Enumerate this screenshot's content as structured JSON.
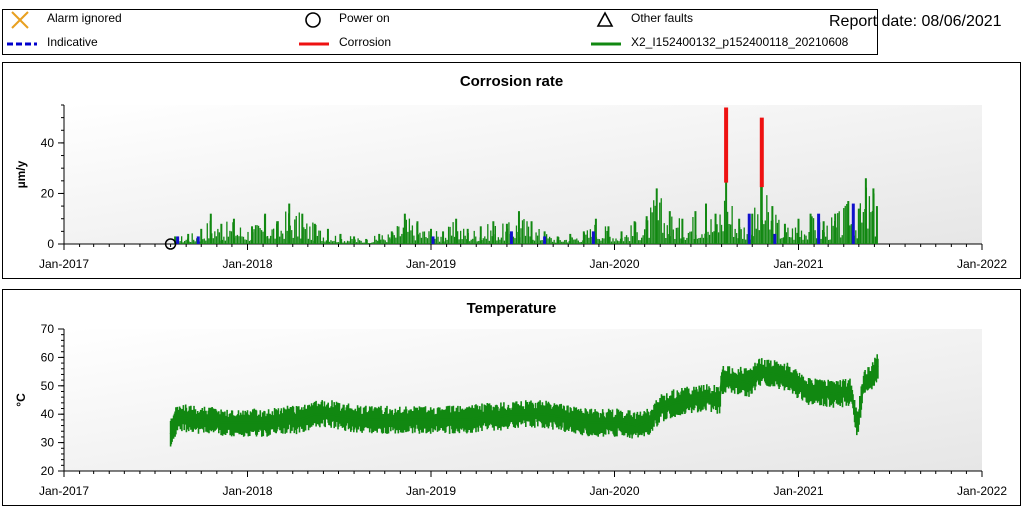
{
  "legend": {
    "items": [
      {
        "id": "alarm",
        "label": "Alarm ignored",
        "marker": "x-cross",
        "color": "#e8a020"
      },
      {
        "id": "power",
        "label": "Power on",
        "marker": "circle",
        "color": "#000000"
      },
      {
        "id": "faults",
        "label": "Other faults",
        "marker": "triangle",
        "color": "#000000"
      },
      {
        "id": "indicative",
        "label": "Indicative",
        "marker": "dashed-line",
        "color": "#0000cc"
      },
      {
        "id": "corrosion",
        "label": "Corrosion",
        "marker": "line",
        "color": "#ee1111"
      },
      {
        "id": "series",
        "label": "X2_I152400132_p152400118_20210608",
        "marker": "line",
        "color": "#118811"
      }
    ]
  },
  "report": {
    "date_label": "Report date: 08/06/2021"
  },
  "colors": {
    "green": "#118811",
    "blue": "#1111cc",
    "red": "#ee1111",
    "plot_bg": "#e6e6e6"
  },
  "chart_data": [
    {
      "type": "bar",
      "title": "Corrosion rate",
      "ylabel": "µm/y",
      "xlabel": "",
      "ylim": [
        0,
        55
      ],
      "yticks": [
        0,
        20,
        40
      ],
      "xlim": [
        "2017-01-01",
        "2022-01-01"
      ],
      "xticks": [
        "Jan-2017",
        "Jan-2018",
        "Jan-2019",
        "Jan-2020",
        "Jan-2021",
        "Jan-2022"
      ],
      "data_start": "2017-08-01",
      "data_end": "2021-06-08",
      "series": [
        {
          "name": "X2_I152400132_p152400118_20210608",
          "color": "#118811",
          "points": [
            [
              "2017-08-10",
              3
            ],
            [
              "2017-09-05",
              4
            ],
            [
              "2017-10-01",
              6
            ],
            [
              "2017-10-20",
              12
            ],
            [
              "2017-11-10",
              8
            ],
            [
              "2017-12-05",
              10
            ],
            [
              "2018-01-10",
              7
            ],
            [
              "2018-02-05",
              12
            ],
            [
              "2018-03-01",
              9
            ],
            [
              "2018-03-25",
              16
            ],
            [
              "2018-04-20",
              12
            ],
            [
              "2018-05-15",
              8
            ],
            [
              "2018-06-10",
              6
            ],
            [
              "2018-07-05",
              4
            ],
            [
              "2018-08-01",
              3
            ],
            [
              "2018-08-25",
              2
            ],
            [
              "2018-09-20",
              4
            ],
            [
              "2018-10-15",
              5
            ],
            [
              "2018-11-10",
              12
            ],
            [
              "2018-12-05",
              9
            ],
            [
              "2019-01-01",
              6
            ],
            [
              "2019-01-25",
              5
            ],
            [
              "2019-02-20",
              10
            ],
            [
              "2019-03-15",
              6
            ],
            [
              "2019-04-10",
              7
            ],
            [
              "2019-05-05",
              9
            ],
            [
              "2019-06-01",
              8
            ],
            [
              "2019-06-25",
              13
            ],
            [
              "2019-07-20",
              9
            ],
            [
              "2019-08-15",
              5
            ],
            [
              "2019-09-10",
              3
            ],
            [
              "2019-10-05",
              4
            ],
            [
              "2019-11-01",
              5
            ],
            [
              "2019-11-25",
              10
            ],
            [
              "2019-12-20",
              7
            ],
            [
              "2020-01-15",
              5
            ],
            [
              "2020-02-10",
              9
            ],
            [
              "2020-03-05",
              11
            ],
            [
              "2020-03-25",
              22
            ],
            [
              "2020-04-20",
              13
            ],
            [
              "2020-05-15",
              10
            ],
            [
              "2020-06-10",
              13
            ],
            [
              "2020-07-01",
              16
            ],
            [
              "2020-07-20",
              12
            ],
            [
              "2020-08-10",
              28
            ],
            [
              "2020-09-05",
              10
            ],
            [
              "2020-10-01",
              12
            ],
            [
              "2020-10-20",
              25
            ],
            [
              "2020-11-10",
              15
            ],
            [
              "2020-12-05",
              8
            ],
            [
              "2021-01-01",
              10
            ],
            [
              "2021-01-25",
              12
            ],
            [
              "2021-02-20",
              9
            ],
            [
              "2021-03-15",
              12
            ],
            [
              "2021-04-10",
              17
            ],
            [
              "2021-05-01",
              14
            ],
            [
              "2021-05-15",
              26
            ],
            [
              "2021-05-30",
              22
            ],
            [
              "2021-06-06",
              15
            ]
          ]
        },
        {
          "name": "Indicative",
          "color": "#1111cc",
          "points": [
            [
              "2017-08-15",
              3
            ],
            [
              "2017-09-25",
              3
            ],
            [
              "2019-01-05",
              3
            ],
            [
              "2019-06-10",
              5
            ],
            [
              "2019-08-15",
              3
            ],
            [
              "2019-11-20",
              5
            ],
            [
              "2020-09-25",
              12
            ],
            [
              "2020-11-15",
              4
            ],
            [
              "2021-02-10",
              12
            ],
            [
              "2021-04-20",
              16
            ]
          ]
        },
        {
          "name": "Corrosion",
          "color": "#ee1111",
          "points": [
            [
              "2020-08-10",
              54
            ],
            [
              "2020-10-20",
              50
            ]
          ]
        }
      ],
      "markers": [
        {
          "type": "power_on",
          "date": "2017-08-01",
          "value": 0
        }
      ]
    },
    {
      "type": "line",
      "title": "Temperature",
      "ylabel": "°C",
      "xlabel": "",
      "ylim": [
        20,
        70
      ],
      "yticks": [
        20,
        30,
        40,
        50,
        60,
        70
      ],
      "xlim": [
        "2017-01-01",
        "2022-01-01"
      ],
      "xticks": [
        "Jan-2017",
        "Jan-2018",
        "Jan-2019",
        "Jan-2020",
        "Jan-2021",
        "Jan-2022"
      ],
      "series": [
        {
          "name": "X2_I152400132_p152400118_20210608",
          "color": "#118811",
          "points": [
            [
              "2017-08-01",
              33
            ],
            [
              "2017-08-15",
              39
            ],
            [
              "2017-09-15",
              38
            ],
            [
              "2017-10-15",
              38
            ],
            [
              "2017-11-15",
              37
            ],
            [
              "2017-12-15",
              37
            ],
            [
              "2018-01-15",
              37
            ],
            [
              "2018-02-15",
              37
            ],
            [
              "2018-03-15",
              38
            ],
            [
              "2018-04-15",
              38
            ],
            [
              "2018-05-15",
              40
            ],
            [
              "2018-06-15",
              40
            ],
            [
              "2018-07-15",
              39
            ],
            [
              "2018-08-15",
              38
            ],
            [
              "2018-09-15",
              38
            ],
            [
              "2018-10-15",
              38
            ],
            [
              "2018-11-15",
              38
            ],
            [
              "2018-12-15",
              38
            ],
            [
              "2019-01-15",
              38
            ],
            [
              "2019-02-15",
              38
            ],
            [
              "2019-03-15",
              38
            ],
            [
              "2019-04-15",
              39
            ],
            [
              "2019-05-15",
              39
            ],
            [
              "2019-06-15",
              40
            ],
            [
              "2019-07-15",
              40
            ],
            [
              "2019-08-15",
              40
            ],
            [
              "2019-09-15",
              39
            ],
            [
              "2019-10-15",
              38
            ],
            [
              "2019-11-15",
              37
            ],
            [
              "2019-12-15",
              37
            ],
            [
              "2020-01-15",
              37
            ],
            [
              "2020-02-15",
              36
            ],
            [
              "2020-03-15",
              38
            ],
            [
              "2020-04-01",
              42
            ],
            [
              "2020-05-01",
              44
            ],
            [
              "2020-06-01",
              45
            ],
            [
              "2020-07-01",
              46
            ],
            [
              "2020-07-28",
              45
            ],
            [
              "2020-08-01",
              52
            ],
            [
              "2020-09-01",
              52
            ],
            [
              "2020-09-25",
              51
            ],
            [
              "2020-10-15",
              55
            ],
            [
              "2020-11-15",
              54
            ],
            [
              "2020-12-15",
              53
            ],
            [
              "2021-01-15",
              48
            ],
            [
              "2021-02-15",
              48
            ],
            [
              "2021-03-15",
              47
            ],
            [
              "2021-04-15",
              48
            ],
            [
              "2021-04-28",
              36
            ],
            [
              "2021-05-10",
              50
            ],
            [
              "2021-05-25",
              53
            ],
            [
              "2021-06-08",
              57
            ]
          ]
        }
      ]
    }
  ]
}
